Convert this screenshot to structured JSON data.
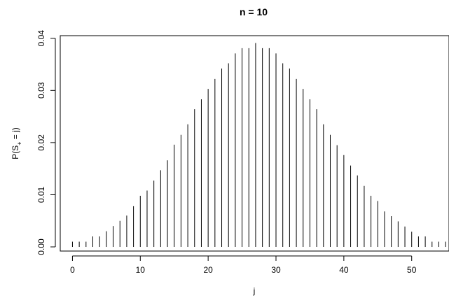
{
  "chart_data": {
    "type": "bar",
    "style": "vertical-lines",
    "title": "n = 10",
    "xlabel": "j",
    "ylabel_main": "P(S",
    "ylabel_sub": "+",
    "ylabel_tail": " = j)",
    "xlim": [
      -1.8,
      55.5
    ],
    "ylim": [
      -0.0008,
      0.0405
    ],
    "xticks": [
      "0",
      "10",
      "20",
      "30",
      "40",
      "50"
    ],
    "xtick_values": [
      0,
      10,
      20,
      30,
      40,
      50
    ],
    "yticks": [
      "0.00",
      "0.01",
      "0.02",
      "0.03",
      "0.04"
    ],
    "ytick_values": [
      0.0,
      0.01,
      0.02,
      0.03,
      0.04
    ],
    "x": [
      0,
      1,
      2,
      3,
      4,
      5,
      6,
      7,
      8,
      9,
      10,
      11,
      12,
      13,
      14,
      15,
      16,
      17,
      18,
      19,
      20,
      21,
      22,
      23,
      24,
      25,
      26,
      27,
      28,
      29,
      30,
      31,
      32,
      33,
      34,
      35,
      36,
      37,
      38,
      39,
      40,
      41,
      42,
      43,
      44,
      45,
      46,
      47,
      48,
      49,
      50,
      51,
      52,
      53,
      54,
      55
    ],
    "values": [
      0.001,
      0.001,
      0.001,
      0.002,
      0.002,
      0.003,
      0.004,
      0.005,
      0.006,
      0.0078,
      0.0098,
      0.0108,
      0.0127,
      0.0147,
      0.0166,
      0.0196,
      0.0215,
      0.0235,
      0.0264,
      0.0283,
      0.0303,
      0.0322,
      0.0342,
      0.0352,
      0.0371,
      0.0381,
      0.0381,
      0.0391,
      0.0381,
      0.0381,
      0.0371,
      0.0352,
      0.0342,
      0.0322,
      0.0303,
      0.0283,
      0.0264,
      0.0235,
      0.0215,
      0.0195,
      0.0176,
      0.0156,
      0.0137,
      0.0117,
      0.0098,
      0.0088,
      0.0068,
      0.0059,
      0.0049,
      0.0039,
      0.0029,
      0.002,
      0.002,
      0.001,
      0.001,
      0.001
    ]
  }
}
